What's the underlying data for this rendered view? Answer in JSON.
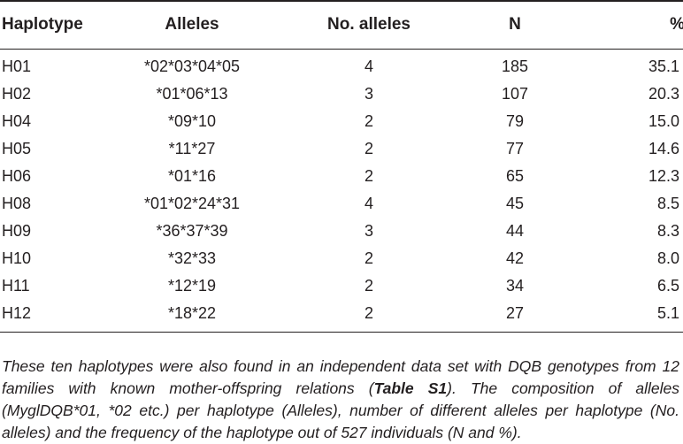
{
  "table": {
    "headers": {
      "haplotype": "Haplotype",
      "alleles": "Alleles",
      "no_alleles": "No. alleles",
      "n": "N",
      "percent": "%"
    },
    "rows": [
      {
        "haplotype": "H01",
        "alleles": "*02*03*04*05",
        "no_alleles": "4",
        "n": "185",
        "percent": "35.1"
      },
      {
        "haplotype": "H02",
        "alleles": "*01*06*13",
        "no_alleles": "3",
        "n": "107",
        "percent": "20.3"
      },
      {
        "haplotype": "H04",
        "alleles": "*09*10",
        "no_alleles": "2",
        "n": "79",
        "percent": "15.0"
      },
      {
        "haplotype": "H05",
        "alleles": "*11*27",
        "no_alleles": "2",
        "n": "77",
        "percent": "14.6"
      },
      {
        "haplotype": "H06",
        "alleles": "*01*16",
        "no_alleles": "2",
        "n": "65",
        "percent": "12.3"
      },
      {
        "haplotype": "H08",
        "alleles": "*01*02*24*31",
        "no_alleles": "4",
        "n": "45",
        "percent": "8.5"
      },
      {
        "haplotype": "H09",
        "alleles": "*36*37*39",
        "no_alleles": "3",
        "n": "44",
        "percent": "8.3"
      },
      {
        "haplotype": "H10",
        "alleles": "*32*33",
        "no_alleles": "2",
        "n": "42",
        "percent": "8.0"
      },
      {
        "haplotype": "H11",
        "alleles": "*12*19",
        "no_alleles": "2",
        "n": "34",
        "percent": "6.5"
      },
      {
        "haplotype": "H12",
        "alleles": "*18*22",
        "no_alleles": "2",
        "n": "27",
        "percent": "5.1"
      }
    ]
  },
  "footnote": {
    "before_ref": "These ten haplotypes were also found in an independent data set with DQB genotypes from 12 families with known mother-offspring relations (",
    "ref": "Table S1",
    "after_ref": "). The composition of alleles (MyglDQB*01, *02 etc.) per haplotype (Alleles), number of different alleles per haplotype (No. alleles) and the frequency of the haplotype out of 527 individuals (N and %)."
  }
}
